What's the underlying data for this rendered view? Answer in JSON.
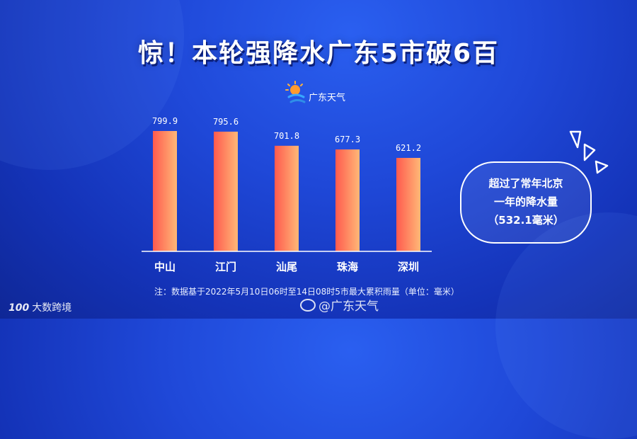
{
  "title": "惊！本轮强降水广东5市破6百",
  "source_logo_label": "广东天气",
  "chart_data": {
    "type": "bar",
    "categories": [
      "中山",
      "江门",
      "汕尾",
      "珠海",
      "深圳"
    ],
    "values": [
      799.9,
      795.6,
      701.8,
      677.3,
      621.2
    ],
    "value_labels": [
      "799.9",
      "795.6",
      "701.8",
      "677.3",
      "621.2"
    ],
    "ylim": [
      0,
      800
    ],
    "xlabel": "",
    "ylabel": "",
    "grid": false,
    "bar_gradient": [
      "#ff5a4e",
      "#ffb877"
    ]
  },
  "callout": {
    "lines": [
      "超过了常年北京",
      "一年的降水量",
      "（532.1毫米）"
    ]
  },
  "footnote": "注：数据基于2022年5月10日06时至14日08时5市最大累积雨量（单位：毫米）",
  "watermarks": {
    "left_logo": "100",
    "left_text": "大数跨境",
    "center_text": "@广东天气"
  }
}
